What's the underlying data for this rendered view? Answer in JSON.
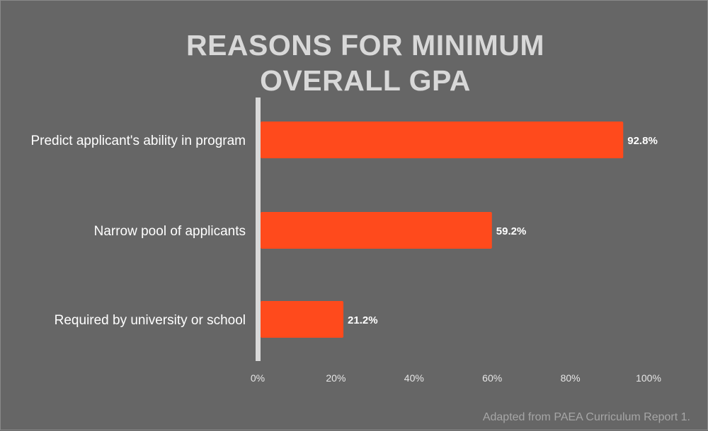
{
  "chart_data": {
    "type": "bar",
    "orientation": "horizontal",
    "title_lines": [
      "REASONS FOR MINIMUM",
      "OVERALL GPA"
    ],
    "categories": [
      "Predict applicant's ability in program",
      "Narrow pool of applicants",
      "Required by university or school"
    ],
    "values": [
      92.8,
      59.2,
      21.2
    ],
    "value_labels": [
      "92.8%",
      "59.2%",
      "21.2%"
    ],
    "xlim": [
      0,
      100
    ],
    "x_ticks": [
      "0%",
      "20%",
      "40%",
      "60%",
      "80%",
      "100%"
    ],
    "grid": false,
    "legend": "none",
    "bar_color": "#ff4a1c",
    "axis_color": "#d9d9d9"
  },
  "footer": {
    "source": "Adapted from PAEA Curriculum Report 1."
  }
}
